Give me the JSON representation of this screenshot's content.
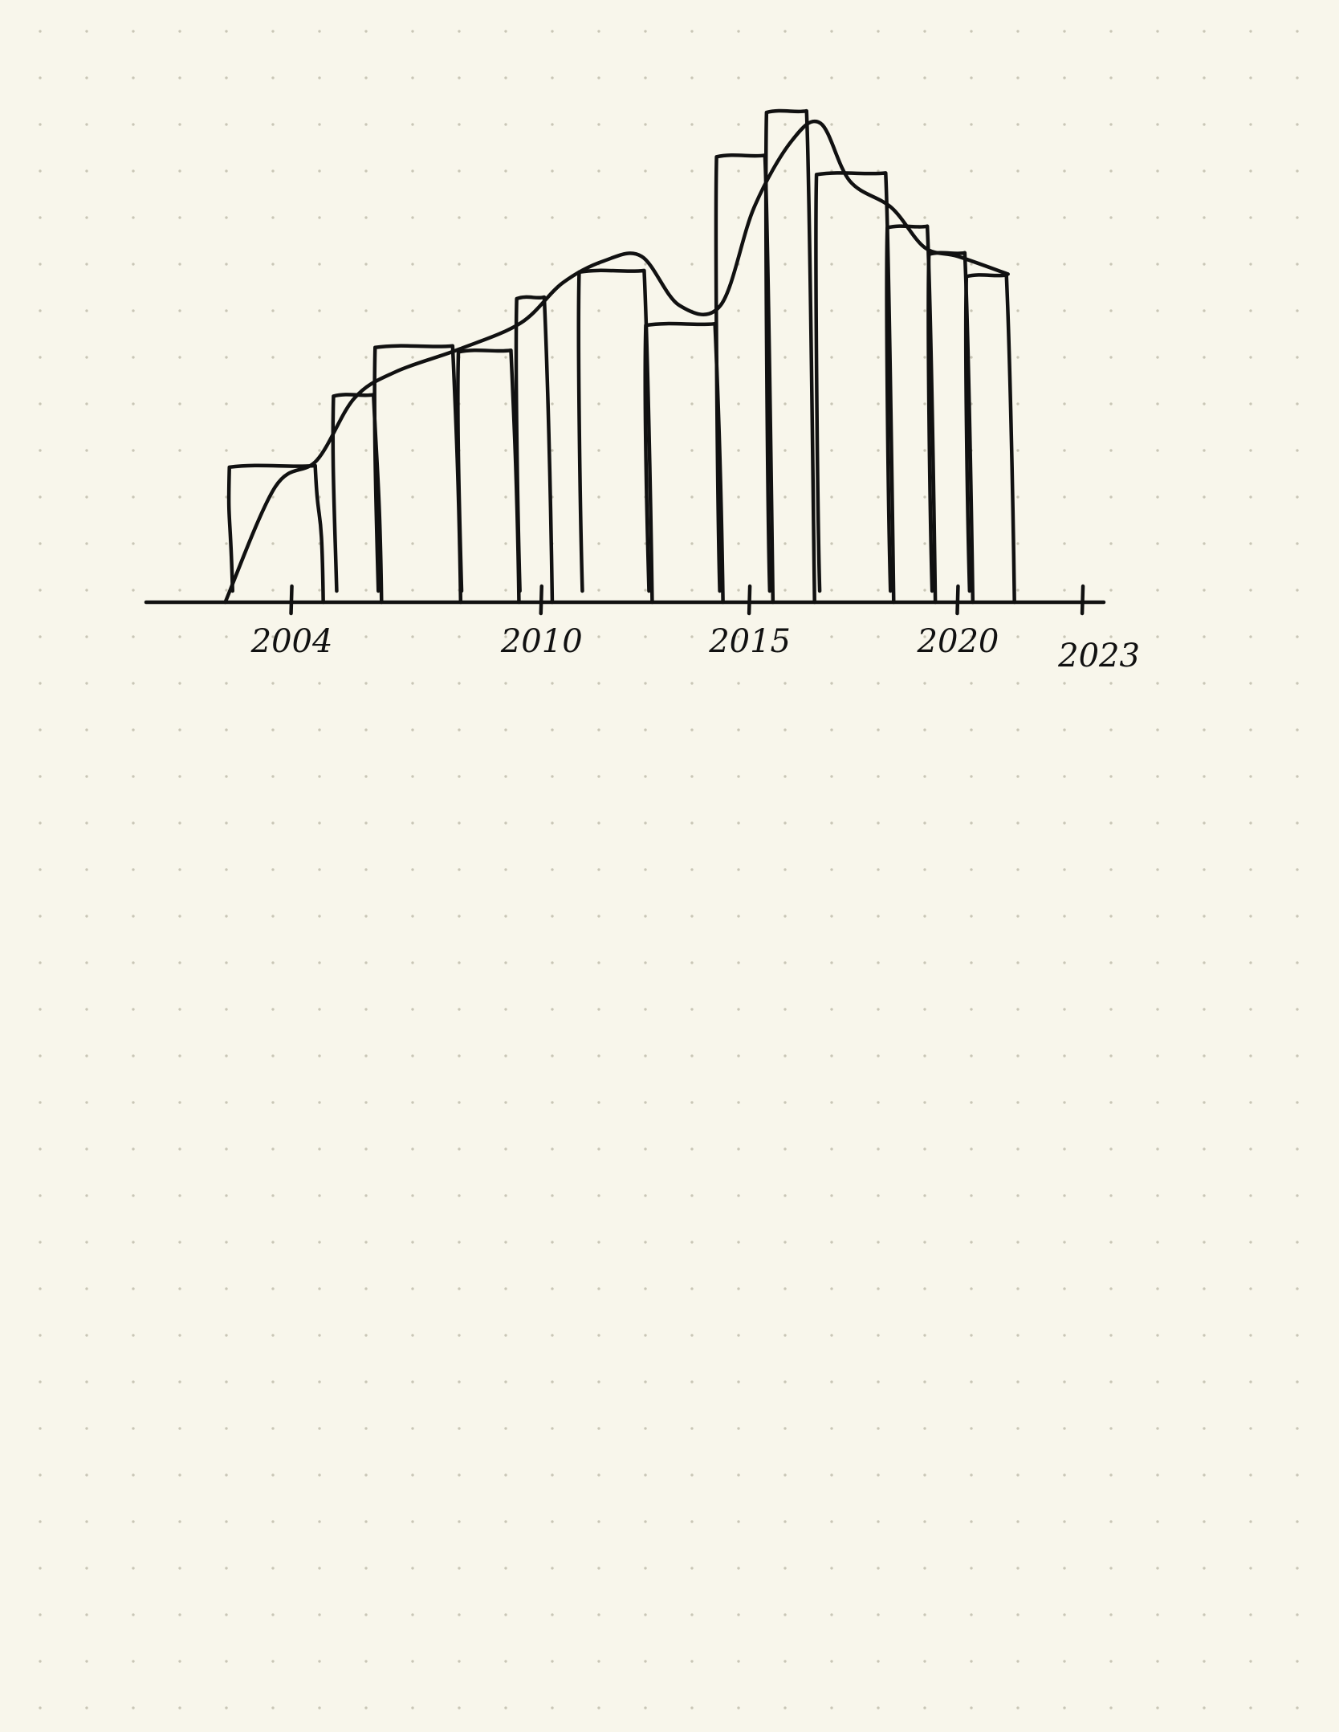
{
  "chart_data": {
    "type": "bar",
    "style": "hand-drawn sketch with overlaid smoothed trend line",
    "ink_color": "#111111",
    "background_color": "#f8f6eb",
    "grid": "dot grid paper",
    "legend": "none",
    "title": "",
    "xlabel": "",
    "ylabel": "",
    "x": [
      2003,
      2004,
      2005,
      2006,
      2007,
      2008,
      2009,
      2010,
      2011,
      2012,
      2013,
      2014,
      2015,
      2016,
      2017,
      2018,
      2019,
      2020,
      2021,
      2022,
      2023
    ],
    "x_ticks": [
      {
        "value": 2004,
        "label": "2004"
      },
      {
        "value": 2010,
        "label": "2010"
      },
      {
        "value": 2015,
        "label": "2015"
      },
      {
        "value": 2020,
        "label": "2020"
      },
      {
        "value": 2023,
        "label": "2023"
      }
    ],
    "series": [
      {
        "kind": "bar",
        "values": [
          [
            2002.5,
            2004.6,
            31
          ],
          [
            2005.0,
            2006.0,
            47
          ],
          [
            2006.0,
            2007.9,
            58
          ],
          [
            2008.0,
            2009.3,
            57
          ],
          [
            2009.4,
            2010.1,
            69
          ],
          [
            2010.9,
            2012.5,
            75
          ],
          [
            2012.5,
            2014.2,
            63
          ],
          [
            2014.2,
            2015.4,
            101
          ],
          [
            2015.4,
            2016.4,
            111
          ],
          [
            2016.6,
            2018.3,
            97
          ],
          [
            2018.3,
            2019.3,
            85
          ],
          [
            2019.3,
            2020.2,
            79
          ],
          [
            2020.2,
            2021.2,
            74
          ]
        ]
      },
      {
        "kind": "line",
        "values": [
          [
            2002.4,
            0
          ],
          [
            2003.6,
            26
          ],
          [
            2004.6,
            32
          ],
          [
            2005.5,
            46
          ],
          [
            2006.5,
            52
          ],
          [
            2008.0,
            57
          ],
          [
            2009.5,
            63
          ],
          [
            2010.5,
            72
          ],
          [
            2011.5,
            77
          ],
          [
            2012.4,
            78
          ],
          [
            2013.3,
            67
          ],
          [
            2014.3,
            67
          ],
          [
            2015.1,
            89
          ],
          [
            2016.0,
            104
          ],
          [
            2016.7,
            108
          ],
          [
            2017.4,
            95
          ],
          [
            2018.4,
            89
          ],
          [
            2019.2,
            80
          ],
          [
            2020.0,
            78
          ],
          [
            2021.2,
            74
          ]
        ]
      }
    ],
    "xlim": [
      2000.5,
      2023.5
    ],
    "ylim": [
      0,
      115
    ]
  }
}
